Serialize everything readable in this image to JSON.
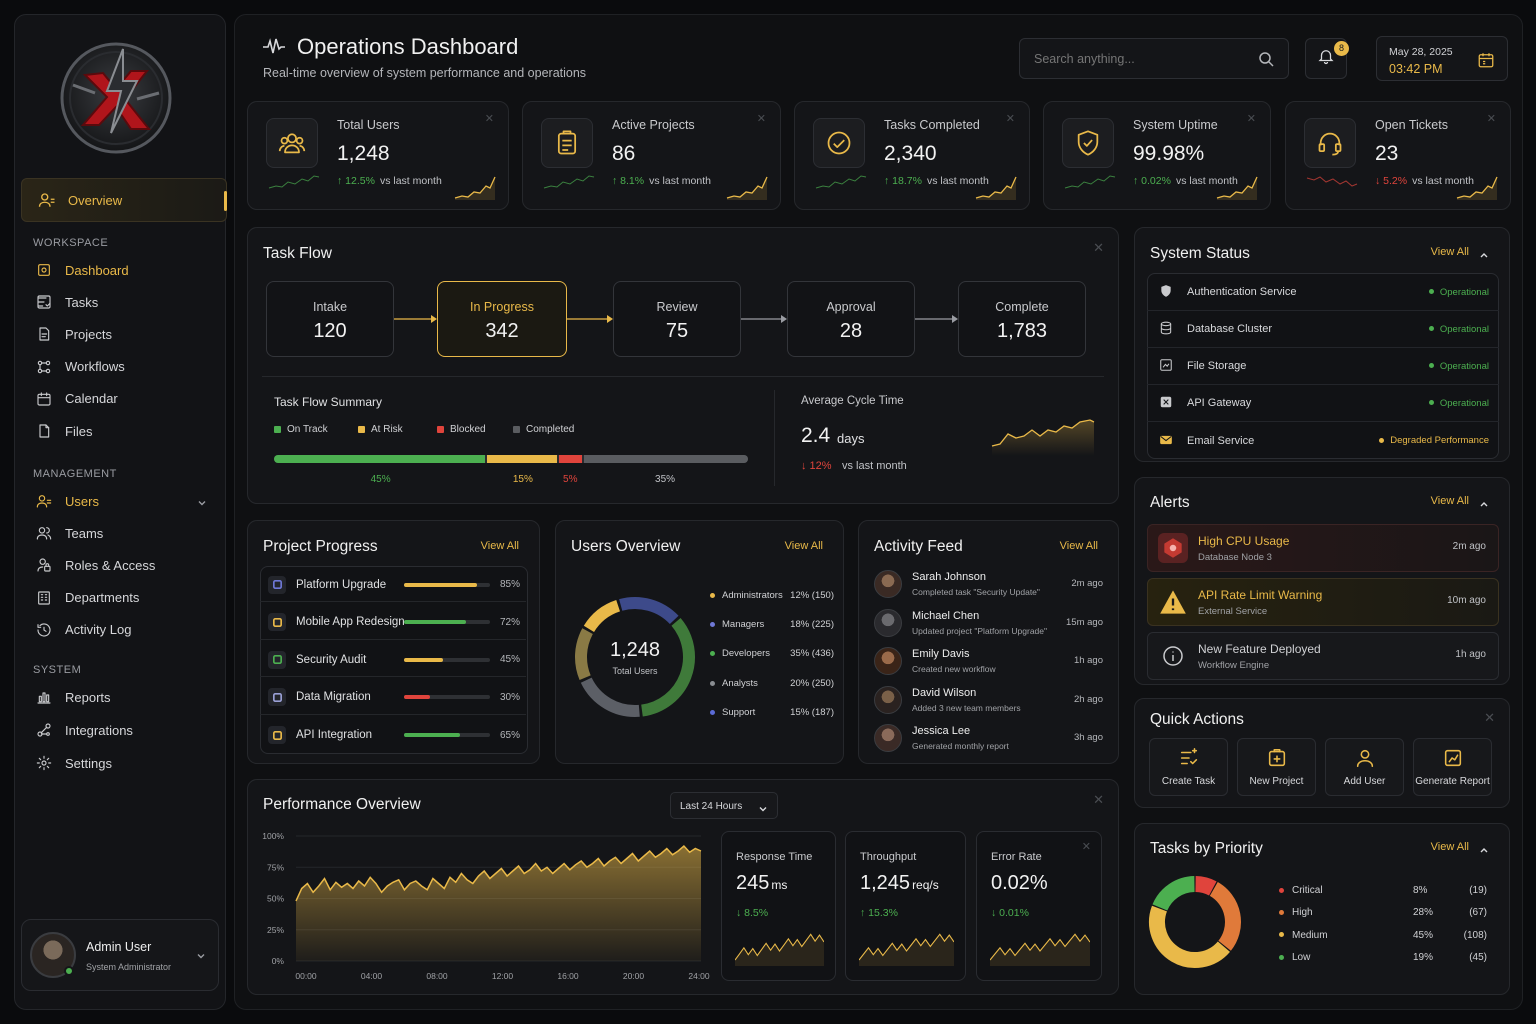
{
  "header": {
    "title": "Operations Dashboard",
    "subtitle": "Real-time overview of system performance and operations",
    "search_placeholder": "Search anything...",
    "notifications_count": "8",
    "date": "May 28, 2025",
    "time": "03:42 PM"
  },
  "sidebar": {
    "overview_label": "Overview",
    "sections": [
      {
        "title": "WORKSPACE",
        "items": [
          {
            "label": "Dashboard",
            "icon": "dashboard-icon"
          },
          {
            "label": "Tasks",
            "icon": "tasks-icon"
          },
          {
            "label": "Projects",
            "icon": "projects-icon"
          },
          {
            "label": "Workflows",
            "icon": "workflows-icon"
          },
          {
            "label": "Calendar",
            "icon": "calendar-icon"
          },
          {
            "label": "Files",
            "icon": "files-icon"
          }
        ]
      },
      {
        "title": "MANAGEMENT",
        "items": [
          {
            "label": "Users",
            "icon": "users-icon"
          },
          {
            "label": "Teams",
            "icon": "teams-icon"
          },
          {
            "label": "Roles & Access",
            "icon": "roles-icon"
          },
          {
            "label": "Departments",
            "icon": "departments-icon"
          },
          {
            "label": "Activity Log",
            "icon": "activity-log-icon"
          }
        ]
      },
      {
        "title": "SYSTEM",
        "items": [
          {
            "label": "Reports",
            "icon": "reports-icon"
          },
          {
            "label": "Integrations",
            "icon": "integrations-icon"
          },
          {
            "label": "Settings",
            "icon": "settings-icon"
          }
        ]
      }
    ],
    "user": {
      "name": "Admin User",
      "role": "System Administrator"
    }
  },
  "kpis": [
    {
      "label": "Total Users",
      "value": "1,248",
      "change": "↑ 12.5%",
      "note": "vs last month",
      "trend": "up"
    },
    {
      "label": "Active Projects",
      "value": "86",
      "change": "↑ 8.1%",
      "note": "vs last month",
      "trend": "up"
    },
    {
      "label": "Tasks Completed",
      "value": "2,340",
      "change": "↑ 18.7%",
      "note": "vs last month",
      "trend": "up"
    },
    {
      "label": "System Uptime",
      "value": "99.98%",
      "change": "↑ 0.02%",
      "note": "vs last month",
      "trend": "up"
    },
    {
      "label": "Open Tickets",
      "value": "23",
      "change": "↓ 5.2%",
      "note": "vs last month",
      "trend": "down"
    }
  ],
  "task_flow": {
    "title": "Task Flow",
    "stages": [
      {
        "label": "Intake",
        "value": "120"
      },
      {
        "label": "In Progress",
        "value": "342"
      },
      {
        "label": "Review",
        "value": "75"
      },
      {
        "label": "Approval",
        "value": "28"
      },
      {
        "label": "Complete",
        "value": "1,783"
      }
    ],
    "summary_title": "Task Flow Summary",
    "legend": [
      {
        "label": "On Track",
        "color": "#4caf50",
        "pct": 45,
        "pct_label": "45%"
      },
      {
        "label": "At Risk",
        "color": "#e9b949",
        "pct": 15,
        "pct_label": "15%"
      },
      {
        "label": "Blocked",
        "color": "#e0443c",
        "pct": 5,
        "pct_label": "5%"
      },
      {
        "label": "Completed",
        "color": "#5a5c60",
        "pct": 35,
        "pct_label": "35%"
      }
    ],
    "cycle_title": "Average Cycle Time",
    "cycle_value": "2.4",
    "cycle_unit": "days",
    "cycle_change": "↓ 12%",
    "cycle_note": "vs last month"
  },
  "system_status": {
    "title": "System Status",
    "view_all": "View All",
    "items": [
      {
        "name": "Authentication Service",
        "status": "Operational",
        "color": "#4caf50"
      },
      {
        "name": "Database Cluster",
        "status": "Operational",
        "color": "#4caf50"
      },
      {
        "name": "File Storage",
        "status": "Operational",
        "color": "#4caf50"
      },
      {
        "name": "API Gateway",
        "status": "Operational",
        "color": "#4caf50"
      },
      {
        "name": "Email Service",
        "status": "Degraded Performance",
        "color": "#e9b949"
      }
    ]
  },
  "alerts": {
    "title": "Alerts",
    "view_all": "View All",
    "items": [
      {
        "title": "High CPU Usage",
        "sub": "Database Node 3",
        "time": "2m ago"
      },
      {
        "title": "API Rate Limit Warning",
        "sub": "External Service",
        "time": "10m ago"
      },
      {
        "title": "New Feature Deployed",
        "sub": "Workflow Engine",
        "time": "1h ago"
      }
    ]
  },
  "project_progress": {
    "title": "Project Progress",
    "view_all": "View All",
    "items": [
      {
        "name": "Platform Upgrade",
        "pct": 85,
        "pct_label": "85%",
        "color": "#e9b949"
      },
      {
        "name": "Mobile App Redesign",
        "pct": 72,
        "pct_label": "72%",
        "color": "#4caf50"
      },
      {
        "name": "Security Audit",
        "pct": 45,
        "pct_label": "45%",
        "color": "#e9b949"
      },
      {
        "name": "Data Migration",
        "pct": 30,
        "pct_label": "30%",
        "color": "#e0443c"
      },
      {
        "name": "API Integration",
        "pct": 65,
        "pct_label": "65%",
        "color": "#4caf50"
      }
    ]
  },
  "users_overview": {
    "title": "Users Overview",
    "view_all": "View All",
    "total": "1,248",
    "total_label": "Total Users",
    "segments": [
      {
        "label": "Administrators",
        "pct": 12,
        "count": "12% (150)",
        "color": "#e9b949"
      },
      {
        "label": "Managers",
        "pct": 18,
        "count": "18% (225)",
        "color": "#3d4a8a"
      },
      {
        "label": "Developers",
        "pct": 35,
        "count": "35% (436)",
        "color": "#3f7a3a"
      },
      {
        "label": "Analysts",
        "pct": 20,
        "count": "20% (250)",
        "color": "#5c5f66"
      },
      {
        "label": "Support",
        "pct": 15,
        "count": "15% (187)",
        "color": "#8a7a45"
      }
    ]
  },
  "activity_feed": {
    "title": "Activity Feed",
    "view_all": "View All",
    "items": [
      {
        "name": "Sarah Johnson",
        "action": "Completed task \"Security Update\"",
        "time": "2m ago"
      },
      {
        "name": "Michael Chen",
        "action": "Updated project \"Platform Upgrade\"",
        "time": "15m ago"
      },
      {
        "name": "Emily Davis",
        "action": "Created new workflow",
        "time": "1h ago"
      },
      {
        "name": "David Wilson",
        "action": "Added 3 new team members",
        "time": "2h ago"
      },
      {
        "name": "Jessica Lee",
        "action": "Generated monthly report",
        "time": "3h ago"
      }
    ]
  },
  "quick_actions": {
    "title": "Quick Actions",
    "items": [
      {
        "label": "Create Task",
        "icon": "create-task-icon"
      },
      {
        "label": "New Project",
        "icon": "new-project-icon"
      },
      {
        "label": "Add User",
        "icon": "add-user-icon"
      },
      {
        "label": "Generate Report",
        "icon": "generate-report-icon"
      }
    ]
  },
  "performance": {
    "title": "Performance Overview",
    "range": "Last 24 Hours",
    "cards": [
      {
        "label": "Response Time",
        "value": "245",
        "unit": "ms",
        "change": "↓ 8.5%"
      },
      {
        "label": "Throughput",
        "value": "1,245",
        "unit": "req/s",
        "change": "↑ 15.3%"
      },
      {
        "label": "Error Rate",
        "value": "0.02%",
        "unit": "",
        "change": "↓ 0.01%"
      }
    ]
  },
  "tasks_by_priority": {
    "title": "Tasks by Priority",
    "view_all": "View All",
    "items": [
      {
        "label": "Critical",
        "pct": 8,
        "pct_label": "8%",
        "count": "(19)",
        "color": "#e0443c"
      },
      {
        "label": "High",
        "pct": 28,
        "pct_label": "28%",
        "count": "(67)",
        "color": "#e07a3a"
      },
      {
        "label": "Medium",
        "pct": 45,
        "pct_label": "45%",
        "count": "(108)",
        "color": "#e9b949"
      },
      {
        "label": "Low",
        "pct": 19,
        "pct_label": "19%",
        "count": "(45)",
        "color": "#4caf50"
      }
    ]
  },
  "chart_data": {
    "type": "area",
    "x_ticks": [
      "00:00",
      "04:00",
      "08:00",
      "12:00",
      "16:00",
      "20:00",
      "24:00"
    ],
    "y_ticks": [
      "100%",
      "75%",
      "50%",
      "25%",
      "0%"
    ],
    "ylim": [
      0,
      100
    ],
    "series": [
      {
        "values": [
          48,
          58,
          62,
          55,
          60,
          66,
          57,
          63,
          59,
          62,
          58,
          64,
          60,
          67,
          62,
          55,
          60,
          63,
          65,
          57,
          62,
          64,
          60,
          57,
          66,
          62,
          58,
          67,
          63,
          70,
          65,
          62,
          68,
          72,
          66,
          70,
          74,
          68,
          72,
          76,
          70,
          73,
          78,
          72,
          75,
          70,
          74,
          78,
          73,
          77,
          80,
          75,
          78,
          82,
          76,
          80,
          83,
          78,
          82,
          86,
          80,
          84,
          88,
          83,
          86,
          90,
          85,
          88,
          92,
          87,
          90,
          88
        ]
      }
    ],
    "color": "#e9b949"
  }
}
